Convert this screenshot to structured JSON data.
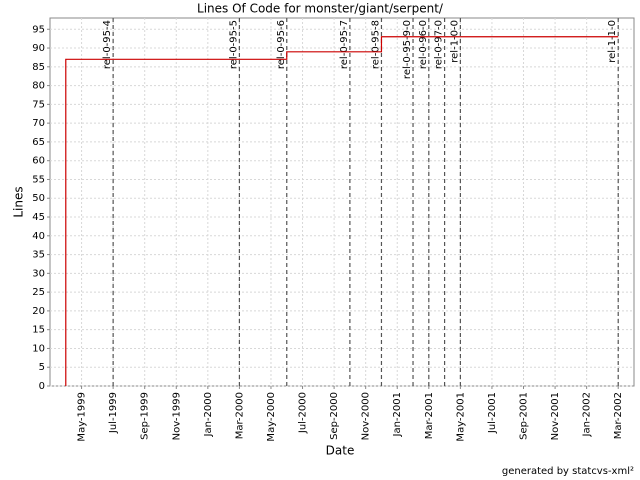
{
  "chart_data": {
    "type": "line",
    "title": "Lines Of Code for monster/giant/serpent/",
    "x_label": "Date",
    "y_label": "Lines",
    "footer": "generated by statcvs-xml²",
    "x": [
      "1999-04",
      "1999-04",
      "2000-06",
      "2000-06",
      "2000-12",
      "2000-12",
      "2002-03"
    ],
    "series": [
      {
        "name": "Lines",
        "color": "#cc0000",
        "values": [
          0,
          87,
          87,
          89,
          89,
          93,
          93
        ]
      }
    ],
    "releases": {
      "x": [
        "1999-07",
        "2000-03",
        "2000-06",
        "2000-10",
        "2000-12",
        "2001-02",
        "2001-03",
        "2001-04",
        "2001-05",
        "2002-03"
      ],
      "labels": [
        "rel-0-95-4",
        "rel-0-95-5",
        "rel-0-95-6",
        "rel-0-95-7",
        "rel-0-95-8",
        "rel-0-95-9-0",
        "rel-0-96-0",
        "rel-0-97-0",
        "rel-1-0-0",
        "rel-1-1-0"
      ]
    },
    "xlim": [
      "1999-03",
      "2002-04"
    ],
    "xticks": [
      {
        "value": "1999-05",
        "label": "May-1999"
      },
      {
        "value": "1999-07",
        "label": "Jul-1999"
      },
      {
        "value": "1999-09",
        "label": "Sep-1999"
      },
      {
        "value": "1999-11",
        "label": "Nov-1999"
      },
      {
        "value": "2000-01",
        "label": "Jan-2000"
      },
      {
        "value": "2000-03",
        "label": "Mar-2000"
      },
      {
        "value": "2000-05",
        "label": "May-2000"
      },
      {
        "value": "2000-07",
        "label": "Jul-2000"
      },
      {
        "value": "2000-09",
        "label": "Sep-2000"
      },
      {
        "value": "2000-11",
        "label": "Nov-2000"
      },
      {
        "value": "2001-01",
        "label": "Jan-2001"
      },
      {
        "value": "2001-03",
        "label": "Mar-2001"
      },
      {
        "value": "2001-05",
        "label": "May-2001"
      },
      {
        "value": "2001-07",
        "label": "Jul-2001"
      },
      {
        "value": "2001-09",
        "label": "Sep-2001"
      },
      {
        "value": "2001-11",
        "label": "Nov-2001"
      },
      {
        "value": "2002-01",
        "label": "Jan-2002"
      },
      {
        "value": "2002-03",
        "label": "Mar-2002"
      }
    ],
    "ylim": [
      0,
      98
    ],
    "yticks": [
      0,
      5,
      10,
      15,
      20,
      25,
      30,
      35,
      40,
      45,
      50,
      55,
      60,
      65,
      70,
      75,
      80,
      85,
      90,
      95
    ],
    "grid": true
  }
}
